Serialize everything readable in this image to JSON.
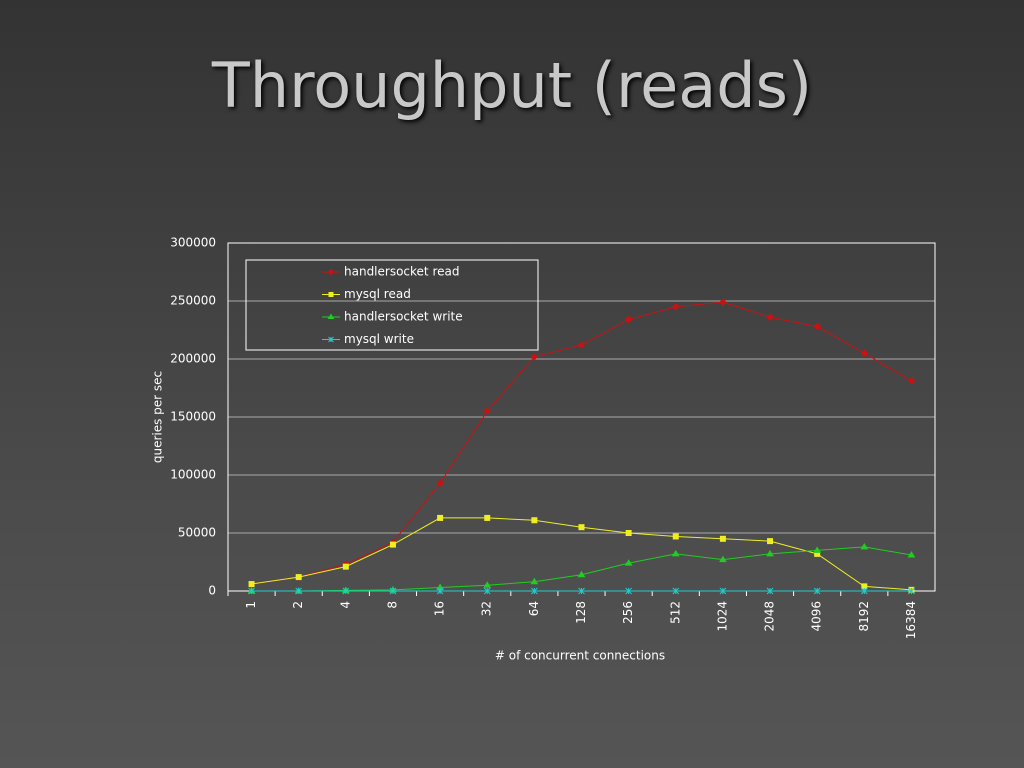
{
  "chart_data": {
    "type": "line",
    "title": "Throughput (reads)",
    "x_label": "# of concurrent connections",
    "y_label": "queries per sec",
    "categories": [
      "1",
      "2",
      "4",
      "8",
      "16",
      "32",
      "64",
      "128",
      "256",
      "512",
      "1024",
      "2048",
      "4096",
      "8192",
      "16384"
    ],
    "series": [
      {
        "name": "handlersocket read",
        "color": "#cc1111",
        "marker": "diamond",
        "values": [
          6000,
          12000,
          23000,
          42000,
          93000,
          155000,
          202000,
          212000,
          234000,
          245000,
          249000,
          236000,
          228000,
          205000,
          181000
        ]
      },
      {
        "name": "mysql read",
        "color": "#eeee22",
        "marker": "square",
        "values": [
          6000,
          12000,
          21000,
          40000,
          63000,
          63000,
          61000,
          55000,
          50000,
          47000,
          45000,
          43000,
          32000,
          4000,
          1000
        ]
      },
      {
        "name": "handlersocket write",
        "color": "#22cc22",
        "marker": "triangle",
        "values": [
          0,
          0,
          500,
          1000,
          3000,
          5000,
          8000,
          14000,
          24000,
          32000,
          27000,
          32000,
          35000,
          38000,
          31000
        ]
      },
      {
        "name": "mysql write",
        "color": "#22cccc",
        "marker": "star",
        "values": [
          0,
          0,
          0,
          0,
          0,
          0,
          0,
          0,
          0,
          0,
          0,
          0,
          0,
          0,
          0
        ]
      }
    ],
    "ylim": [
      0,
      300000
    ],
    "yticks": [
      0,
      50000,
      100000,
      150000,
      200000,
      250000,
      300000
    ],
    "grid": true,
    "legend": "upper left"
  }
}
